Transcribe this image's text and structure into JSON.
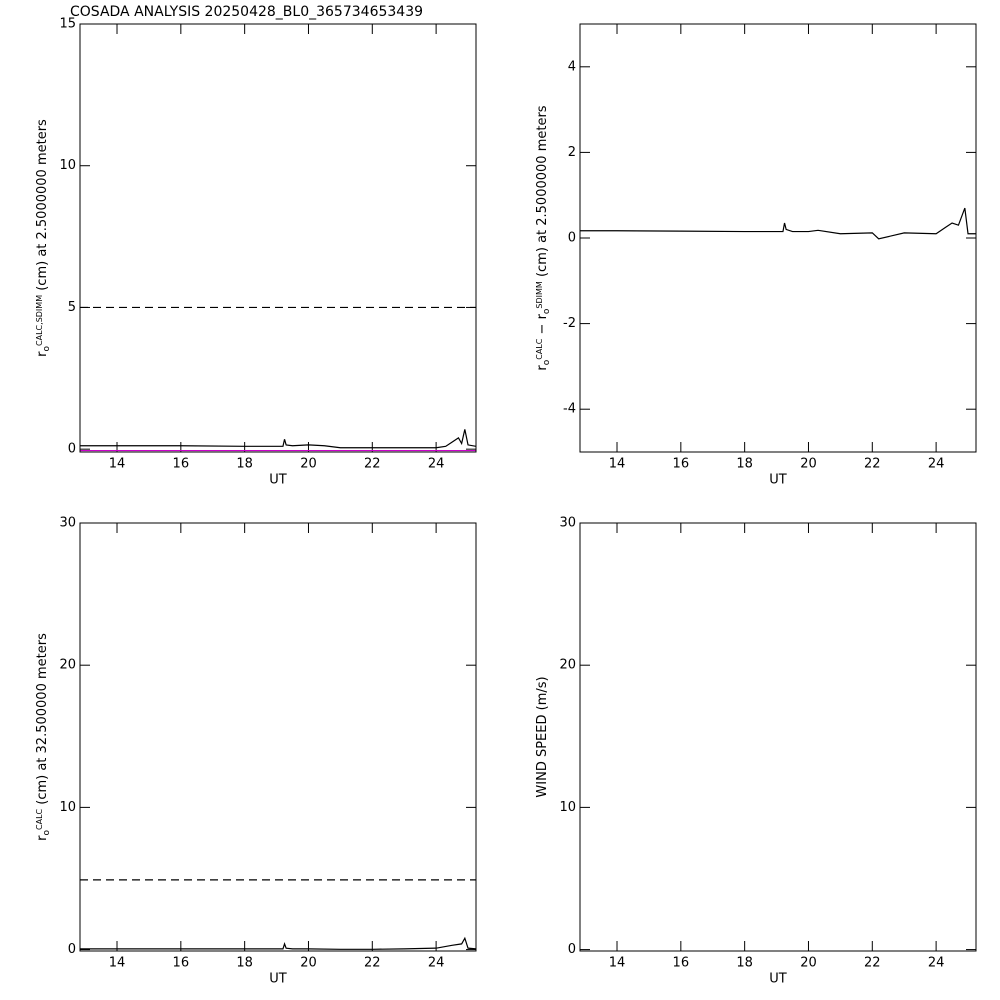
{
  "chart_data": [
    {
      "type": "line",
      "title": "COSADA ANALYSIS 20250428_BL0_365734653439",
      "xlabel": "UT",
      "ylabel": [
        {
          "text": "r"
        },
        {
          "text": "o",
          "pos": "sub"
        },
        {
          "text": "CALC,SDIMM",
          "pos": "sup"
        },
        {
          "text": " (cm)  at  2.5000000 meters"
        }
      ],
      "x": [
        12.84,
        14,
        16,
        18,
        19.2,
        19.25,
        19.3,
        19.5,
        20,
        20.5,
        21,
        22,
        23,
        24,
        24.3,
        24.5,
        24.7,
        24.8,
        24.9,
        25.0,
        25.25
      ],
      "series": [
        {
          "color": "#000000",
          "style": "dashed",
          "values": [
            5,
            5,
            5,
            5,
            5,
            5,
            5,
            5,
            5,
            5,
            5,
            5,
            5,
            5,
            5,
            5,
            5,
            5,
            5,
            5,
            5
          ]
        },
        {
          "color": "#cc00cc",
          "style": "solid",
          "values": [
            -0.05,
            -0.05,
            -0.05,
            -0.05,
            -0.05,
            -0.05,
            -0.05,
            -0.05,
            -0.05,
            -0.05,
            -0.05,
            -0.05,
            -0.05,
            -0.05,
            -0.05,
            -0.05,
            -0.05,
            -0.05,
            -0.05,
            -0.05,
            -0.05
          ]
        },
        {
          "color": "#000000",
          "style": "solid",
          "values": [
            0.12,
            0.12,
            0.12,
            0.1,
            0.1,
            0.35,
            0.15,
            0.12,
            0.15,
            0.12,
            0.05,
            0.05,
            0.05,
            0.05,
            0.1,
            0.25,
            0.4,
            0.2,
            0.7,
            0.15,
            0.1
          ]
        }
      ],
      "xlim": [
        12.84,
        25.25
      ],
      "xticks": [
        14,
        16,
        18,
        20,
        22,
        24
      ],
      "ylim": [
        -0.1,
        15
      ],
      "yticks": [
        0,
        5,
        10,
        15
      ]
    },
    {
      "type": "line",
      "xlabel": "UT",
      "ylabel": [
        {
          "text": "r"
        },
        {
          "text": "o",
          "pos": "sub"
        },
        {
          "text": "CALC",
          "pos": "sup"
        },
        {
          "text": "  − r"
        },
        {
          "text": "o",
          "pos": "sub"
        },
        {
          "text": "SDIMM",
          "pos": "sup"
        },
        {
          "text": " (cm)  at  2.5000000 meters"
        }
      ],
      "x": [
        12.84,
        14,
        16,
        18,
        19.2,
        19.25,
        19.3,
        19.5,
        20,
        20.3,
        21,
        22,
        22.2,
        23,
        24,
        24.3,
        24.5,
        24.7,
        24.9,
        25.0,
        25.25
      ],
      "series": [
        {
          "color": "#000000",
          "style": "solid",
          "values": [
            0.17,
            0.17,
            0.16,
            0.15,
            0.15,
            0.35,
            0.2,
            0.15,
            0.15,
            0.18,
            0.1,
            0.12,
            -0.02,
            0.12,
            0.1,
            0.25,
            0.35,
            0.3,
            0.7,
            0.1,
            0.1
          ]
        }
      ],
      "xlim": [
        12.84,
        25.25
      ],
      "xticks": [
        14,
        16,
        18,
        20,
        22,
        24
      ],
      "ylim": [
        -5,
        5
      ],
      "yticks": [
        -4,
        -2,
        0,
        2,
        4
      ]
    },
    {
      "type": "line",
      "xlabel": "UT",
      "ylabel": [
        {
          "text": "r"
        },
        {
          "text": "o",
          "pos": "sub"
        },
        {
          "text": "CALC",
          "pos": "sup"
        },
        {
          "text": " (cm)  at  32.500000 meters"
        }
      ],
      "x": [
        12.84,
        14,
        16,
        18,
        19.2,
        19.25,
        19.3,
        19.5,
        20,
        21,
        22,
        23,
        24,
        24.5,
        24.8,
        24.9,
        25.0,
        25.25
      ],
      "series": [
        {
          "color": "#000000",
          "style": "dashed",
          "values": [
            4.9,
            4.9,
            4.9,
            4.9,
            4.9,
            4.9,
            4.9,
            4.9,
            4.9,
            4.9,
            4.9,
            4.9,
            4.9,
            4.9,
            4.9,
            4.9,
            4.9,
            4.9
          ]
        },
        {
          "color": "#000000",
          "style": "solid",
          "values": [
            0.05,
            0.05,
            0.05,
            0.05,
            0.05,
            0.4,
            0.1,
            0.05,
            0.05,
            0.02,
            0.02,
            0.05,
            0.1,
            0.3,
            0.4,
            0.8,
            0.1,
            0.05
          ]
        }
      ],
      "xlim": [
        12.84,
        25.25
      ],
      "xticks": [
        14,
        16,
        18,
        20,
        22,
        24
      ],
      "ylim": [
        -0.1,
        30
      ],
      "yticks": [
        0,
        10,
        20,
        30
      ]
    },
    {
      "type": "line",
      "xlabel": "UT",
      "ylabel": [
        {
          "text": "WIND SPEED (m/s)"
        }
      ],
      "x": [],
      "series": [],
      "xlim": [
        12.84,
        25.25
      ],
      "xticks": [
        14,
        16,
        18,
        20,
        22,
        24
      ],
      "ylim": [
        -0.1,
        30
      ],
      "yticks": [
        0,
        10,
        20,
        30
      ]
    }
  ]
}
